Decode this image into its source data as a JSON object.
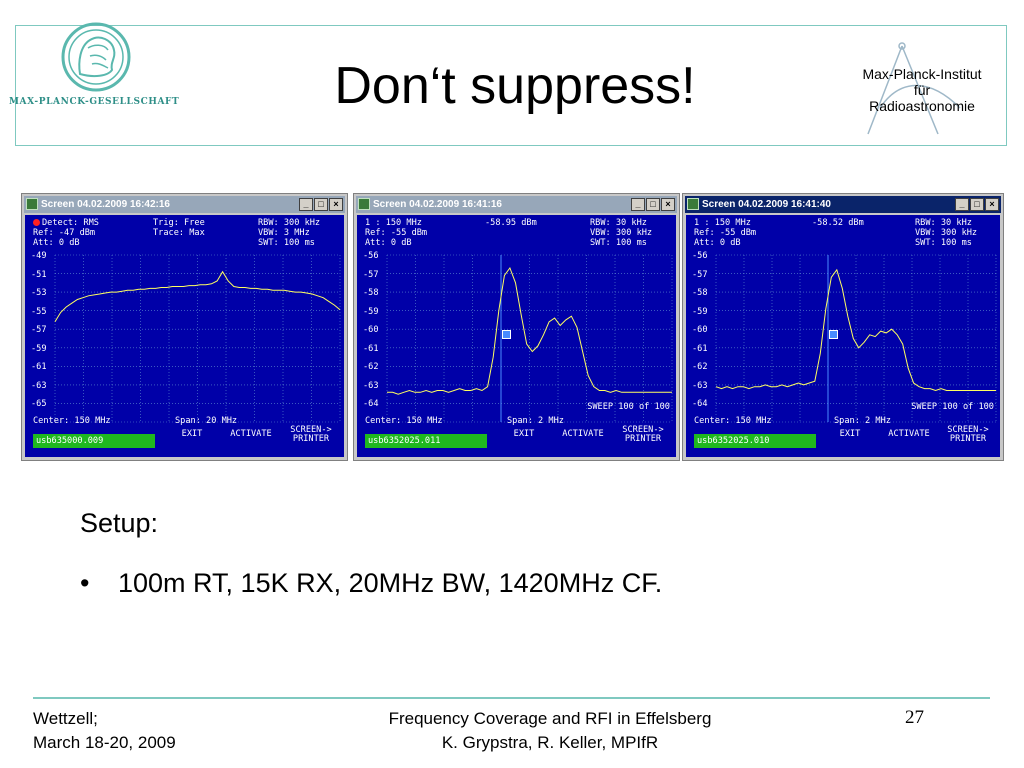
{
  "header": {
    "title": "Don‘t suppress!",
    "org_left": "MAX-PLANCK-GESELLSCHAFT",
    "org_right_lines": [
      "Max-Planck-Institut",
      "für",
      "Radioastronomie"
    ]
  },
  "colors": {
    "teal": "#7fc9c0",
    "screen_blue": "#0000a8",
    "trace": "#ffff60",
    "grid": "#5f8fd0",
    "marker": "#4a8cff",
    "filename_green": "#1fb81f"
  },
  "screens": [
    {
      "window_title": "Screen  04.02.2009  16:42:16",
      "active": false,
      "header_rows": [
        [
          "Detect: RMS",
          "Trig: Free",
          "RBW: 300 kHz"
        ],
        [
          "Ref: -47 dBm",
          "Trace: Max",
          "VBW: 3 MHz"
        ],
        [
          "Att: 0 dB",
          "",
          "SWT: 100 ms"
        ]
      ],
      "ylabels": [
        "-49",
        "-51",
        "-53",
        "-55",
        "-57",
        "-59",
        "-61",
        "-63",
        "-65"
      ],
      "ymin": -66,
      "ymax": -48,
      "sweep": "",
      "center": "Center: 150 MHz",
      "span": "Span: 20 MHz",
      "filename": "usb635000.009",
      "softkeys": [
        "EXIT",
        "ACTIVATE",
        "SCREEN->\nPRINTER"
      ],
      "trace": [
        -55.2,
        -54.2,
        -53.6,
        -53.2,
        -52.8,
        -52.6,
        -52.4,
        -52.3,
        -52.2,
        -52.1,
        -52.0,
        -52.0,
        -51.9,
        -51.8,
        -51.8,
        -51.7,
        -51.7,
        -51.6,
        -51.6,
        -51.5,
        -51.5,
        -51.4,
        -51.4,
        -51.4,
        -51.3,
        -51.3,
        -51.2,
        -51.2,
        -51.1,
        -50.8,
        -49.8,
        -50.8,
        -51.4,
        -51.5,
        -51.5,
        -51.6,
        -51.6,
        -51.7,
        -51.7,
        -51.8,
        -51.8,
        -51.8,
        -51.9,
        -52.0,
        -52.0,
        -52.1,
        -52.2,
        -52.4,
        -52.6,
        -53.0,
        -53.4,
        -53.9
      ]
    },
    {
      "window_title": "Screen  04.02.2009  16:41:16",
      "active": false,
      "header_rows": [
        [
          "1 : 150 MHz",
          "-58.95 dBm",
          "RBW: 30 kHz"
        ],
        [
          "Ref: -55 dBm",
          "",
          "VBW: 300 kHz"
        ],
        [
          "Att: 0 dB",
          "",
          "SWT: 100 ms"
        ]
      ],
      "ylabels": [
        "-56",
        "-57",
        "-58",
        "-59",
        "-60",
        "-61",
        "-62",
        "-63",
        "-64"
      ],
      "ymin": -64.5,
      "ymax": -55.5,
      "sweep": "SWEEP 100 of 100",
      "center": "Center: 150 MHz",
      "span": "Span: 2 MHz",
      "filename": "usb6352025.011",
      "softkeys": [
        "EXIT",
        "ACTIVATE",
        "SCREEN->\nPRINTER"
      ],
      "trace": [
        -62.9,
        -62.9,
        -63.0,
        -62.9,
        -62.8,
        -62.9,
        -62.9,
        -62.8,
        -62.9,
        -62.8,
        -62.8,
        -62.9,
        -62.8,
        -62.7,
        -62.8,
        -62.8,
        -62.7,
        -62.8,
        -62.6,
        -61.0,
        -58.5,
        -56.6,
        -56.2,
        -57.0,
        -58.7,
        -60.3,
        -60.7,
        -60.4,
        -59.8,
        -59.1,
        -58.9,
        -59.3,
        -59.0,
        -58.8,
        -59.4,
        -60.7,
        -62.0,
        -62.6,
        -62.8,
        -62.8,
        -62.9,
        -62.8,
        -62.9,
        -62.9,
        -62.9,
        -62.9,
        -62.9,
        -62.9,
        -62.9,
        -62.9,
        -62.9,
        -62.9
      ]
    },
    {
      "window_title": "Screen  04.02.2009  16:41:40",
      "active": true,
      "header_rows": [
        [
          "1 : 150 MHz",
          "-58.52 dBm",
          "RBW: 30 kHz"
        ],
        [
          "Ref: -55 dBm",
          "",
          "VBW: 300 kHz"
        ],
        [
          "Att: 0 dB",
          "",
          "SWT: 100 ms"
        ]
      ],
      "ylabels": [
        "-56",
        "-57",
        "-58",
        "-59",
        "-60",
        "-61",
        "-62",
        "-63",
        "-64"
      ],
      "ymin": -64.5,
      "ymax": -55.5,
      "sweep": "SWEEP 100 of 100",
      "center": "Center: 150 MHz",
      "span": "Span: 2 MHz",
      "filename": "usb6352025.010",
      "softkeys": [
        "EXIT",
        "ACTIVATE",
        "SCREEN->\nPRINTER"
      ],
      "trace": [
        -62.6,
        -62.7,
        -62.6,
        -62.7,
        -62.6,
        -62.6,
        -62.7,
        -62.6,
        -62.6,
        -62.5,
        -62.6,
        -62.6,
        -62.5,
        -62.6,
        -62.5,
        -62.4,
        -62.5,
        -62.4,
        -62.3,
        -60.8,
        -58.4,
        -56.7,
        -56.3,
        -57.3,
        -58.8,
        -60.0,
        -60.5,
        -60.2,
        -59.8,
        -59.9,
        -59.6,
        -59.7,
        -59.5,
        -59.8,
        -60.3,
        -61.6,
        -62.4,
        -62.6,
        -62.7,
        -62.7,
        -62.8,
        -62.7,
        -62.8,
        -62.8,
        -62.8,
        -62.8,
        -62.8,
        -62.8,
        -62.8,
        -62.8,
        -62.8,
        -62.8
      ]
    }
  ],
  "body": {
    "setup_label": "Setup:",
    "bullet_symbol": "•",
    "bullet_text": "100m RT, 15K RX, 20MHz BW, 1420MHz CF."
  },
  "footer": {
    "left_line1": "Wettzell;",
    "left_line2": "March 18-20, 2009",
    "center_line1": "Frequency Coverage and RFI in Effelsberg",
    "center_line2": "K. Grypstra, R. Keller, MPIfR",
    "page": "27"
  }
}
